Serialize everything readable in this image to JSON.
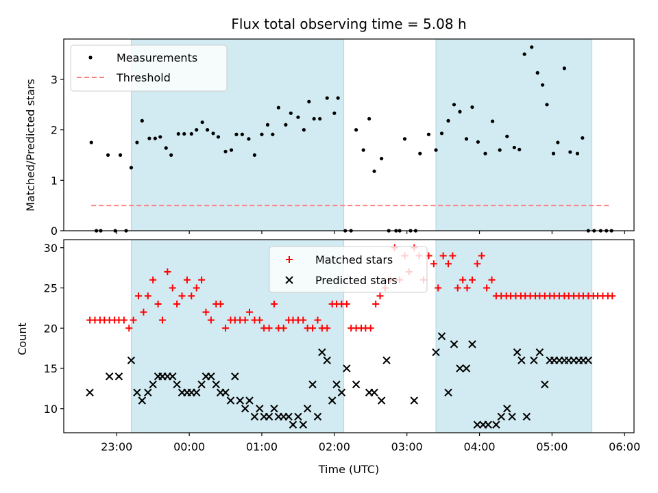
{
  "colors": {
    "band": "#add8e6",
    "measurement": "#000000",
    "threshold": "#ff8080",
    "matched": "#ff0000",
    "predicted": "#000000"
  },
  "x_axis": {
    "label": "Time (UTC)",
    "range_hours": [
      -0.73,
      7.13
    ],
    "ticks": [
      {
        "value": 0,
        "label": "23:00"
      },
      {
        "value": 1,
        "label": "00:00"
      },
      {
        "value": 2,
        "label": "01:00"
      },
      {
        "value": 3,
        "label": "02:00"
      },
      {
        "value": 4,
        "label": "03:00"
      },
      {
        "value": 5,
        "label": "04:00"
      },
      {
        "value": 6,
        "label": "05:00"
      },
      {
        "value": 7,
        "label": "06:00"
      }
    ]
  },
  "bands": [
    [
      0.2,
      3.13
    ],
    [
      4.4,
      6.55
    ]
  ],
  "chart_data": [
    {
      "type": "scatter",
      "title": "Flux total observing time = 5.08 h",
      "xlabel": "",
      "ylabel": "Matched/Predicted stars",
      "ylim": [
        0,
        3.8
      ],
      "yticks": [
        0,
        1,
        2,
        3
      ],
      "legend": {
        "placement": "top-left",
        "entries": [
          "Measurements",
          "Threshold"
        ]
      },
      "threshold": {
        "name": "Threshold",
        "value": 0.5,
        "x_range": [
          -0.35,
          6.8
        ]
      },
      "series": [
        {
          "name": "Measurements",
          "x": [
            -0.35,
            -0.28,
            -0.22,
            -0.12,
            -0.02,
            0.05,
            0.13,
            0.2,
            0.28,
            0.35,
            0.45,
            0.53,
            0.6,
            0.68,
            0.75,
            0.85,
            0.93,
            1.03,
            1.1,
            1.18,
            1.25,
            1.33,
            1.4,
            1.5,
            1.58,
            1.65,
            1.73,
            1.82,
            1.9,
            2.0,
            2.08,
            2.15,
            2.23,
            2.33,
            2.4,
            2.5,
            2.58,
            2.65,
            2.72,
            2.8,
            2.9,
            3.0,
            3.05,
            3.15,
            3.23,
            3.3,
            3.4,
            3.48,
            3.55,
            3.65,
            3.75,
            3.85,
            3.9,
            3.97,
            4.05,
            4.12,
            4.18,
            4.3,
            4.4,
            4.48,
            4.57,
            4.65,
            4.73,
            4.82,
            4.9,
            4.98,
            5.08,
            5.18,
            5.28,
            5.38,
            5.48,
            5.55,
            5.62,
            5.72,
            5.8,
            5.87,
            5.93,
            6.02,
            6.08,
            6.17,
            6.25,
            6.35,
            6.42,
            6.5,
            6.58,
            6.67,
            6.75,
            6.82
          ],
          "y": [
            1.75,
            0,
            0,
            1.5,
            0,
            1.5,
            0,
            1.25,
            1.75,
            2.18,
            1.83,
            1.83,
            1.86,
            1.64,
            1.5,
            1.92,
            1.92,
            1.92,
            2.0,
            2.15,
            2.0,
            1.93,
            1.86,
            1.57,
            1.6,
            1.91,
            1.91,
            1.82,
            1.5,
            1.91,
            2.1,
            1.91,
            2.44,
            2.1,
            2.33,
            2.25,
            2.0,
            2.56,
            2.22,
            2.22,
            2.63,
            2.33,
            2.63,
            0,
            0,
            2.0,
            1.6,
            2.22,
            1.18,
            1.43,
            0,
            0,
            0,
            1.82,
            0,
            0,
            1.53,
            1.91,
            1.6,
            1.93,
            2.18,
            2.5,
            2.36,
            1.82,
            2.45,
            1.76,
            1.53,
            2.17,
            1.6,
            1.87,
            1.65,
            1.61,
            3.5,
            3.64,
            3.13,
            2.89,
            2.5,
            1.53,
            1.75,
            3.22,
            1.56,
            1.53,
            1.84,
            0,
            0,
            0,
            0,
            0
          ]
        }
      ]
    },
    {
      "type": "scatter",
      "title": "",
      "xlabel": "Time (UTC)",
      "ylabel": "Count",
      "ylim": [
        7,
        31
      ],
      "yticks": [
        10,
        15,
        20,
        25,
        30
      ],
      "legend": {
        "placement": "top-center",
        "entries": [
          "Matched stars",
          "Predicted stars"
        ]
      },
      "series": [
        {
          "name": "Matched stars",
          "x": [
            -0.37,
            -0.3,
            -0.23,
            -0.17,
            -0.1,
            -0.03,
            0.03,
            0.1,
            0.17,
            0.23,
            0.3,
            0.37,
            0.43,
            0.5,
            0.57,
            0.63,
            0.7,
            0.77,
            0.83,
            0.9,
            0.97,
            1.03,
            1.1,
            1.17,
            1.23,
            1.3,
            1.37,
            1.43,
            1.5,
            1.57,
            1.63,
            1.7,
            1.77,
            1.83,
            1.9,
            1.97,
            2.03,
            2.1,
            2.17,
            2.23,
            2.3,
            2.37,
            2.43,
            2.5,
            2.57,
            2.63,
            2.7,
            2.77,
            2.83,
            2.9,
            2.97,
            3.03,
            3.1,
            3.17,
            3.23,
            3.3,
            3.37,
            3.43,
            3.5,
            3.57,
            3.63,
            3.7,
            3.77,
            3.83,
            3.9,
            3.97,
            4.03,
            4.1,
            4.17,
            4.23,
            4.3,
            4.37,
            4.43,
            4.5,
            4.57,
            4.63,
            4.7,
            4.77,
            4.83,
            4.9,
            4.97,
            5.03,
            5.1,
            5.17,
            5.23,
            5.3,
            5.37,
            5.43,
            5.5,
            5.57,
            5.63,
            5.7,
            5.77,
            5.83,
            5.9,
            5.97,
            6.03,
            6.1,
            6.17,
            6.23,
            6.3,
            6.37,
            6.43,
            6.5,
            6.57,
            6.63,
            6.7,
            6.77,
            6.83
          ],
          "y": [
            21,
            21,
            21,
            21,
            21,
            21,
            21,
            21,
            20,
            21,
            24,
            22,
            24,
            26,
            23,
            21,
            27,
            25,
            23,
            24,
            26,
            24,
            25,
            26,
            22,
            21,
            23,
            23,
            20,
            21,
            21,
            21,
            21,
            22,
            21,
            21,
            20,
            20,
            23,
            20,
            20,
            21,
            21,
            21,
            21,
            20,
            20,
            21,
            20,
            20,
            23,
            23,
            23,
            23,
            20,
            20,
            20,
            20,
            20,
            23,
            24,
            25,
            26,
            30,
            26,
            29,
            27,
            30,
            29,
            26,
            29,
            28,
            25,
            29,
            28,
            29,
            25,
            26,
            25,
            26,
            28,
            29,
            25,
            26,
            24,
            24,
            24,
            24,
            24,
            24,
            24,
            24,
            24,
            24,
            24,
            24,
            24,
            24,
            24,
            24,
            24,
            24,
            24,
            24,
            24,
            24,
            24,
            24,
            24
          ]
        },
        {
          "name": "Predicted stars",
          "x": [
            -0.37,
            -0.1,
            0.03,
            0.2,
            0.28,
            0.35,
            0.43,
            0.5,
            0.57,
            0.63,
            0.7,
            0.77,
            0.83,
            0.9,
            0.97,
            1.03,
            1.1,
            1.17,
            1.23,
            1.3,
            1.37,
            1.43,
            1.5,
            1.57,
            1.63,
            1.7,
            1.77,
            1.83,
            1.9,
            1.97,
            2.03,
            2.1,
            2.17,
            2.23,
            2.3,
            2.37,
            2.43,
            2.5,
            2.57,
            2.63,
            2.7,
            2.77,
            2.83,
            2.9,
            2.97,
            3.03,
            3.1,
            3.17,
            3.3,
            3.48,
            3.55,
            3.65,
            3.72,
            4.1,
            4.4,
            4.48,
            4.57,
            4.65,
            4.73,
            4.82,
            4.9,
            4.97,
            5.05,
            5.12,
            5.23,
            5.3,
            5.38,
            5.45,
            5.52,
            5.58,
            5.65,
            5.75,
            5.83,
            5.9,
            5.97,
            6.03,
            6.1,
            6.17,
            6.23,
            6.3,
            6.37,
            6.43,
            6.5
          ],
          "y": [
            12,
            14,
            14,
            16,
            12,
            11,
            12,
            13,
            14,
            14,
            14,
            14,
            13,
            12,
            12,
            12,
            12,
            13,
            14,
            14,
            13,
            12,
            12,
            11,
            14,
            11,
            10,
            11,
            9,
            10,
            9,
            9,
            10,
            9,
            9,
            9,
            8,
            9,
            8,
            10,
            13,
            9,
            17,
            16,
            11,
            13,
            12,
            15,
            13,
            12,
            12,
            11,
            16,
            11,
            17,
            19,
            12,
            18,
            15,
            15,
            18,
            8,
            8,
            8,
            8,
            9,
            10,
            9,
            17,
            16,
            9,
            16,
            17,
            13,
            16,
            16,
            16,
            16,
            16,
            16,
            16,
            16,
            16
          ],
          "note_hidden": ""
        }
      ]
    }
  ]
}
